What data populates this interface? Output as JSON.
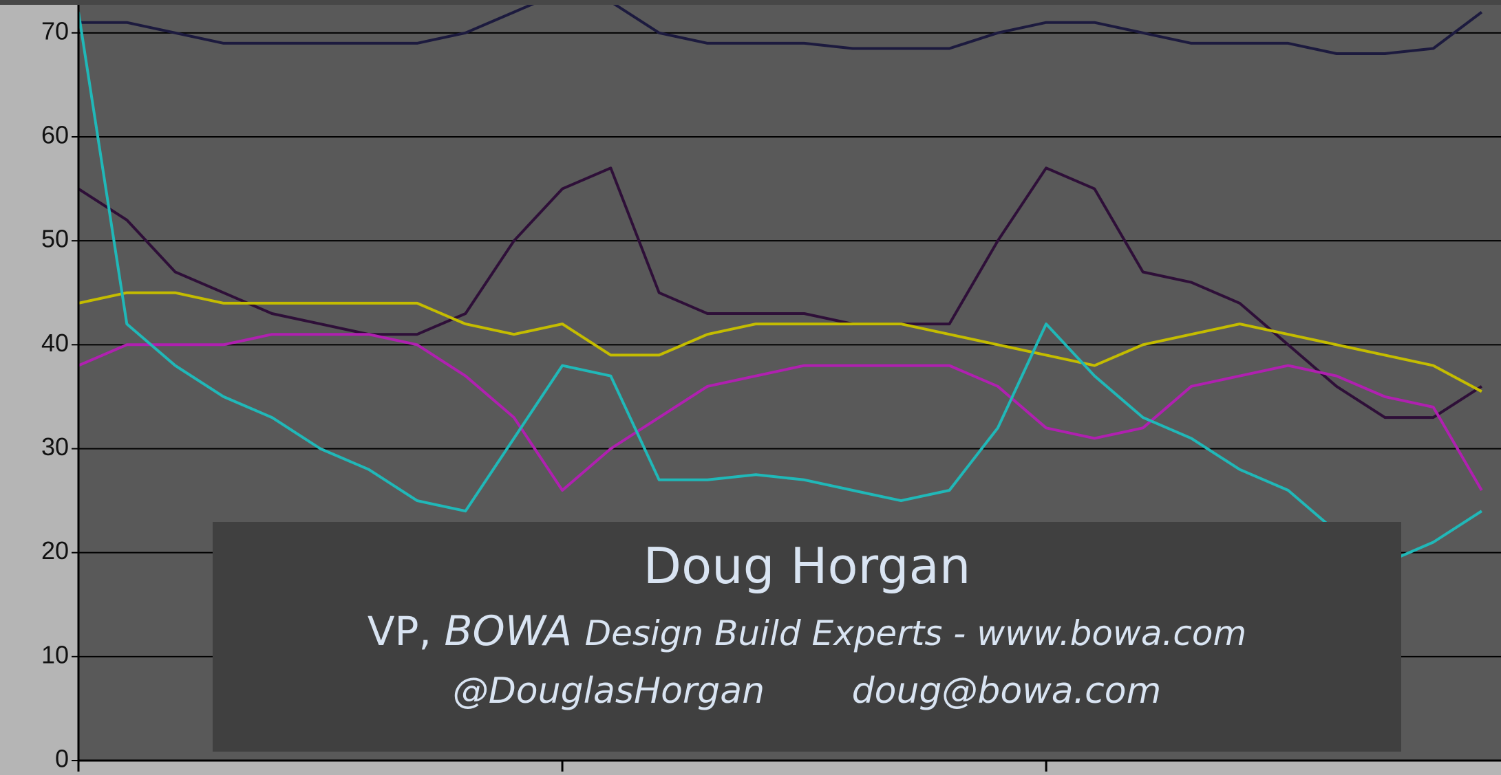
{
  "chart_data": {
    "type": "line",
    "x": [
      0,
      5,
      10,
      15,
      20,
      25,
      30,
      35,
      40,
      45,
      50,
      55,
      60,
      65,
      70,
      75,
      80,
      85,
      90,
      95,
      100,
      105,
      110,
      115,
      120,
      125,
      130,
      135,
      140,
      145
    ],
    "xlim": [
      0,
      147
    ],
    "xticks": [
      0,
      50,
      100
    ],
    "ylim": [
      0,
      72.7
    ],
    "yticks": [
      0,
      10,
      20,
      30,
      40,
      50,
      60,
      70
    ],
    "grid": true,
    "series": [
      {
        "color": "#1c1a3e",
        "values": [
          71,
          71,
          70,
          69,
          69,
          69,
          69,
          69,
          70,
          72,
          74,
          73,
          70,
          69,
          69,
          69,
          68.5,
          68.5,
          68.5,
          70,
          71,
          71,
          70,
          69,
          69,
          69,
          68,
          68,
          68.5,
          72
        ]
      },
      {
        "color": "#2e0f38",
        "values": [
          55,
          52,
          47,
          45,
          43,
          42,
          41,
          41,
          43,
          50,
          55,
          57,
          45,
          43,
          43,
          43,
          42,
          42,
          42,
          50,
          57,
          55,
          47,
          46,
          44,
          40,
          36,
          33,
          33,
          36
        ]
      },
      {
        "color": "#c4bc00",
        "values": [
          44,
          45,
          45,
          44,
          44,
          44,
          44,
          44,
          42,
          41,
          42,
          39,
          39,
          41,
          42,
          42,
          42,
          42,
          41,
          40,
          39,
          38,
          40,
          41,
          42,
          41,
          40,
          39,
          38,
          35.5
        ]
      },
      {
        "color": "#b020b0",
        "values": [
          38,
          40,
          40,
          40,
          41,
          41,
          41,
          40,
          37,
          33,
          26,
          30,
          33,
          36,
          37,
          38,
          38,
          38,
          38,
          36,
          32,
          31,
          32,
          36,
          37,
          38,
          37,
          35,
          34,
          26
        ]
      },
      {
        "color": "#20b8b8",
        "values": [
          72,
          42,
          38,
          35,
          33,
          30,
          28,
          25,
          24,
          31,
          38,
          37,
          27,
          27,
          27.5,
          27,
          26,
          25,
          26,
          32,
          42,
          37,
          33,
          31,
          28,
          26,
          22,
          19,
          21,
          24
        ]
      }
    ]
  },
  "caption": {
    "name": "Doug Horgan",
    "role": "VP,",
    "company": "BOWA",
    "tagline": "Design Build Experts - www.bowa.com",
    "twitter": "@DouglasHorgan",
    "email": "doug@bowa.com"
  }
}
